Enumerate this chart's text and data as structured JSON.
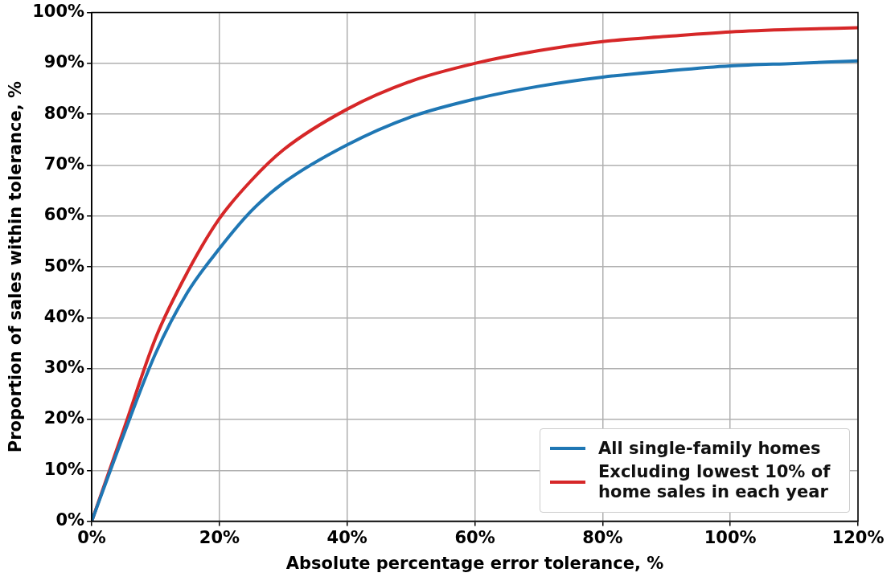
{
  "chart_data": {
    "type": "line",
    "xlabel": "Absolute percentage error tolerance, %",
    "ylabel": "Proportion of sales within tolerance, %",
    "x": [
      0,
      5,
      10,
      15,
      20,
      25,
      30,
      40,
      50,
      60,
      70,
      80,
      90,
      100,
      110,
      120
    ],
    "series": [
      {
        "name": "All single-family homes",
        "color": "#1f77b4",
        "values": [
          0,
          17,
          33,
          45,
          53.6,
          61,
          66.5,
          74,
          79.5,
          83,
          85.5,
          87.3,
          88.5,
          89.5,
          90,
          90.5
        ]
      },
      {
        "name": "Excluding lowest 10% of home sales in each year",
        "color": "#d62728",
        "values": [
          0,
          18,
          36,
          49,
          59.5,
          67,
          73,
          81,
          86.5,
          90,
          92.5,
          94.3,
          95.3,
          96.2,
          96.7,
          97
        ]
      }
    ],
    "xlim": [
      0,
      120
    ],
    "ylim": [
      0,
      100
    ],
    "xticks": [
      {
        "value": 0,
        "label": "0%"
      },
      {
        "value": 20,
        "label": "20%"
      },
      {
        "value": 40,
        "label": "40%"
      },
      {
        "value": 60,
        "label": "60%"
      },
      {
        "value": 80,
        "label": "80%"
      },
      {
        "value": 100,
        "label": "100%"
      },
      {
        "value": 120,
        "label": "120%"
      }
    ],
    "yticks": [
      {
        "value": 0,
        "label": "0%"
      },
      {
        "value": 10,
        "label": "10%"
      },
      {
        "value": 20,
        "label": "20%"
      },
      {
        "value": 30,
        "label": "30%"
      },
      {
        "value": 40,
        "label": "40%"
      },
      {
        "value": 50,
        "label": "50%"
      },
      {
        "value": 60,
        "label": "60%"
      },
      {
        "value": 70,
        "label": "70%"
      },
      {
        "value": 80,
        "label": "80%"
      },
      {
        "value": 90,
        "label": "90%"
      },
      {
        "value": 100,
        "label": "100%"
      }
    ],
    "grid": true,
    "legend": "bottom right",
    "marker": "none",
    "line_style": "solid"
  }
}
